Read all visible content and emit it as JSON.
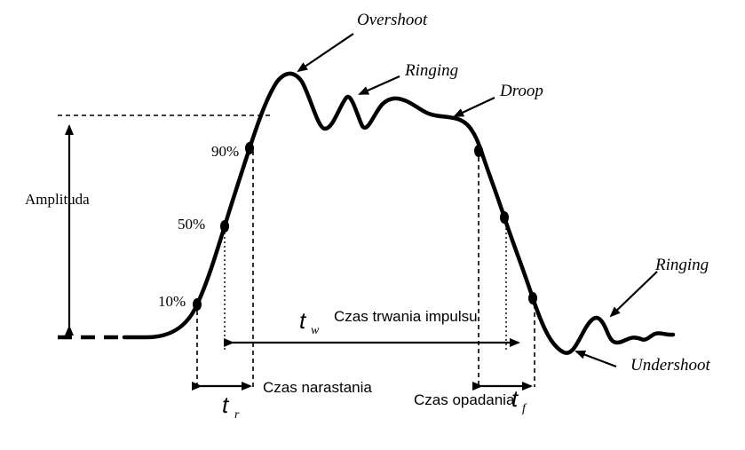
{
  "labels": {
    "overshoot": "Overshoot",
    "ringing_top": "Ringing",
    "droop": "Droop",
    "amplitude": "Amplituda",
    "pct_90": "90%",
    "pct_50": "50%",
    "pct_10": "10%",
    "tw_symbol": "t",
    "tw_sub": "w",
    "pulse_duration": "Czas trwania impulsu",
    "ringing_bottom": "Ringing",
    "undershoot": "Undershoot",
    "rise_time": "Czas narastania",
    "tr_symbol": "t",
    "tr_sub": "r",
    "fall_time": "Czas opadania",
    "tf_symbol": "t",
    "tf_sub": "f"
  }
}
